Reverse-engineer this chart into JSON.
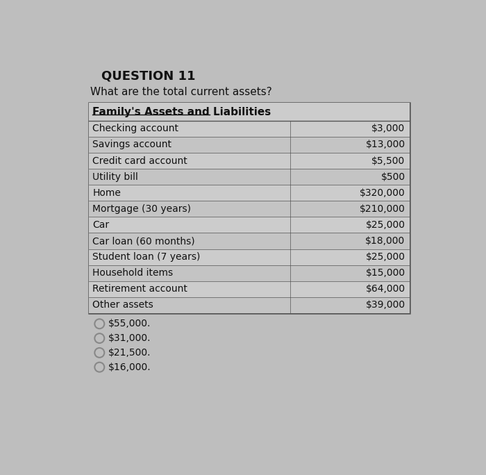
{
  "title": "QUESTION 11",
  "question": "What are the total current assets?",
  "table_header": "Family's Assets and Liabilities",
  "rows": [
    [
      "Checking account",
      "$3,000"
    ],
    [
      "Savings account",
      "$13,000"
    ],
    [
      "Credit card account",
      "$5,500"
    ],
    [
      "Utility bill",
      "$500"
    ],
    [
      "Home",
      "$320,000"
    ],
    [
      "Mortgage (30 years)",
      "$210,000"
    ],
    [
      "Car",
      "$25,000"
    ],
    [
      "Car loan (60 months)",
      "$18,000"
    ],
    [
      "Student loan (7 years)",
      "$25,000"
    ],
    [
      "Household items",
      "$15,000"
    ],
    [
      "Retirement account",
      "$64,000"
    ],
    [
      "Other assets",
      "$39,000"
    ]
  ],
  "choices": [
    "$55,000.",
    "$31,000.",
    "$21,500.",
    "$16,000."
  ],
  "bg_color": "#bebebe",
  "table_bg_even": "#cccccc",
  "table_bg_odd": "#c4c4c4",
  "border_color": "#555555",
  "text_color": "#111111",
  "title_fontsize": 13,
  "question_fontsize": 11,
  "table_fontsize": 10,
  "choice_fontsize": 10
}
